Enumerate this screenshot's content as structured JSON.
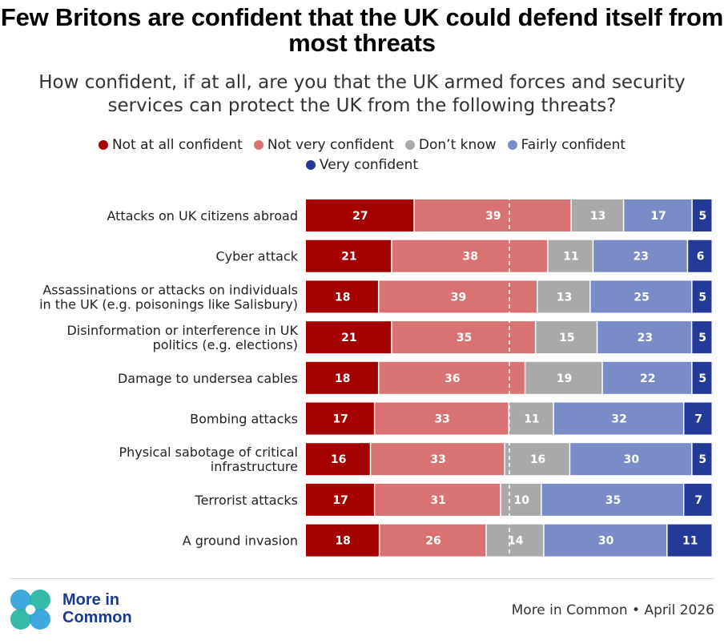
{
  "title": "Few Britons are confident that the UK could defend itself from most threats",
  "subtitle": "How confident, if at all, are you that the UK armed forces and security services can protect the UK from the following threats?",
  "logo": {
    "line1": "More in",
    "line2": "Common"
  },
  "source": "More in Common • April 2026",
  "colors": {
    "not_at_all": "#a50000",
    "not_very": "#d97373",
    "dont_know": "#a9a9a9",
    "fairly": "#7a8cc8",
    "very": "#243a98"
  },
  "chart_data": {
    "type": "bar",
    "orientation": "horizontal",
    "stacked": true,
    "diverging_midline": true,
    "categories": [
      "Attacks on UK citizens abroad",
      "Cyber attack",
      "Assassinations or attacks on individuals in the UK (e.g. poisonings like Salisbury)",
      "Disinformation or interference in UK politics (e.g. elections)",
      "Damage to undersea cables",
      "Bombing attacks",
      "Physical sabotage of critical infrastructure",
      "Terrorist attacks",
      "A ground invasion"
    ],
    "category_lines": [
      [
        "Attacks on UK citizens abroad"
      ],
      [
        "Cyber attack"
      ],
      [
        "Assassinations or attacks on individuals",
        "in the UK (e.g. poisonings like Salisbury)"
      ],
      [
        "Disinformation or interference in UK",
        "politics (e.g. elections)"
      ],
      [
        "Damage to undersea cables"
      ],
      [
        "Bombing attacks"
      ],
      [
        "Physical sabotage of critical",
        "infrastructure"
      ],
      [
        "Terrorist attacks"
      ],
      [
        "A ground invasion"
      ]
    ],
    "series": [
      {
        "name": "Not at all confident",
        "color_key": "not_at_all",
        "values": [
          27,
          21,
          18,
          21,
          18,
          17,
          16,
          17,
          18
        ]
      },
      {
        "name": "Not very confident",
        "color_key": "not_very",
        "values": [
          39,
          38,
          39,
          35,
          36,
          33,
          33,
          31,
          26
        ]
      },
      {
        "name": "Don’t know",
        "color_key": "dont_know",
        "values": [
          13,
          11,
          13,
          15,
          19,
          11,
          16,
          10,
          14
        ]
      },
      {
        "name": "Fairly confident",
        "color_key": "fairly",
        "values": [
          17,
          23,
          25,
          23,
          22,
          32,
          30,
          35,
          30
        ]
      },
      {
        "name": "Very confident",
        "color_key": "very",
        "values": [
          5,
          6,
          5,
          5,
          5,
          7,
          5,
          7,
          11
        ]
      }
    ]
  }
}
